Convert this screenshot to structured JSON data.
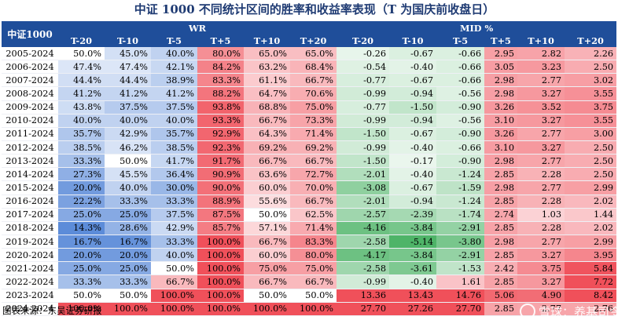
{
  "title": "中证 1000 不同统计区间的胜率和收益率表现（T 为国庆前收盘日）",
  "header": {
    "index_label": "中证1000",
    "groups": [
      "WR",
      "MID %"
    ],
    "sub_headers": [
      "T-20",
      "T-10",
      "T-5",
      "T+5",
      "T+10",
      "T+20",
      "T-20",
      "T-10",
      "T-5",
      "T+5",
      "T+10",
      "T+20"
    ]
  },
  "rows": [
    {
      "period": "2005-2024",
      "wr": [
        "50.0%",
        "45.0%",
        "40.0%",
        "80.0%",
        "65.0%",
        "65.0%"
      ],
      "mid": [
        "-0.26",
        "-0.67",
        "-0.66",
        "2.95",
        "2.82",
        "2.26"
      ]
    },
    {
      "period": "2006-2024",
      "wr": [
        "47.4%",
        "47.4%",
        "42.1%",
        "84.2%",
        "63.2%",
        "68.4%"
      ],
      "mid": [
        "-0.54",
        "-0.40",
        "-0.66",
        "3.05",
        "3.23",
        "2.50"
      ]
    },
    {
      "period": "2007-2024",
      "wr": [
        "44.4%",
        "44.4%",
        "38.9%",
        "83.3%",
        "61.1%",
        "66.7%"
      ],
      "mid": [
        "-0.77",
        "-0.67",
        "-0.66",
        "2.98",
        "2.77",
        "3.02"
      ]
    },
    {
      "period": "2008-2024",
      "wr": [
        "41.2%",
        "41.2%",
        "41.2%",
        "88.2%",
        "64.7%",
        "70.6%"
      ],
      "mid": [
        "-0.99",
        "-0.94",
        "-0.56",
        "2.98",
        "3.27",
        "3.55"
      ]
    },
    {
      "period": "2009-2024",
      "wr": [
        "43.8%",
        "37.5%",
        "37.5%",
        "93.8%",
        "68.8%",
        "75.0%"
      ],
      "mid": [
        "-0.77",
        "-1.50",
        "-0.90",
        "3.26",
        "3.52",
        "3.75"
      ]
    },
    {
      "period": "2010-2024",
      "wr": [
        "40.0%",
        "40.0%",
        "40.0%",
        "93.3%",
        "66.7%",
        "73.3%"
      ],
      "mid": [
        "-0.99",
        "-0.94",
        "-0.56",
        "3.10",
        "3.27",
        "3.55"
      ]
    },
    {
      "period": "2011-2024",
      "wr": [
        "35.7%",
        "42.9%",
        "35.7%",
        "92.9%",
        "64.3%",
        "71.4%"
      ],
      "mid": [
        "-1.50",
        "-0.67",
        "-0.90",
        "3.26",
        "2.77",
        "3.00"
      ]
    },
    {
      "period": "2012-2024",
      "wr": [
        "38.5%",
        "46.2%",
        "38.5%",
        "92.3%",
        "69.2%",
        "69.2%"
      ],
      "mid": [
        "-0.99",
        "-0.40",
        "-0.66",
        "3.10",
        "3.27",
        "2.50"
      ]
    },
    {
      "period": "2013-2024",
      "wr": [
        "33.3%",
        "50.0%",
        "41.7%",
        "91.7%",
        "66.7%",
        "66.7%"
      ],
      "mid": [
        "-1.50",
        "-0.17",
        "-0.90",
        "2.98",
        "2.77",
        "2.50"
      ]
    },
    {
      "period": "2014-2024",
      "wr": [
        "27.3%",
        "45.5%",
        "36.4%",
        "90.9%",
        "63.6%",
        "72.7%"
      ],
      "mid": [
        "-2.01",
        "-0.40",
        "-1.24",
        "2.85",
        "2.28",
        "2.50"
      ]
    },
    {
      "period": "2015-2024",
      "wr": [
        "20.0%",
        "40.0%",
        "30.0%",
        "90.0%",
        "60.0%",
        "70.0%"
      ],
      "mid": [
        "-3.08",
        "-0.67",
        "-1.59",
        "2.98",
        "2.77",
        "2.99"
      ]
    },
    {
      "period": "2016-2024",
      "wr": [
        "22.2%",
        "33.3%",
        "33.3%",
        "88.9%",
        "55.6%",
        "66.7%"
      ],
      "mid": [
        "-2.01",
        "-0.94",
        "-1.24",
        "2.85",
        "2.28",
        "2.02"
      ]
    },
    {
      "period": "2017-2024",
      "wr": [
        "25.0%",
        "25.0%",
        "37.5%",
        "87.5%",
        "50.0%",
        "62.5%"
      ],
      "mid": [
        "-2.57",
        "-2.39",
        "-1.74",
        "2.74",
        "1.03",
        "1.44"
      ]
    },
    {
      "period": "2018-2024",
      "wr": [
        "14.3%",
        "28.6%",
        "42.9%",
        "85.7%",
        "57.1%",
        "71.4%"
      ],
      "mid": [
        "-4.16",
        "-3.84",
        "-2.91",
        "2.85",
        "2.28",
        "2.02"
      ]
    },
    {
      "period": "2019-2024",
      "wr": [
        "16.7%",
        "16.7%",
        "33.3%",
        "100.0%",
        "66.7%",
        "83.3%"
      ],
      "mid": [
        "-2.58",
        "-5.14",
        "-3.80",
        "2.98",
        "2.77",
        "2.99"
      ]
    },
    {
      "period": "2020-2024",
      "wr": [
        "20.0%",
        "20.0%",
        "40.0%",
        "100.0%",
        "60.0%",
        "80.0%"
      ],
      "mid": [
        "-4.17",
        "-3.84",
        "-2.91",
        "2.85",
        "3.27",
        "3.95"
      ]
    },
    {
      "period": "2021-2024",
      "wr": [
        "25.0%",
        "25.0%",
        "50.0%",
        "100.0%",
        "75.0%",
        "75.0%"
      ],
      "mid": [
        "-2.58",
        "-3.61",
        "-1.53",
        "2.42",
        "3.75",
        "5.84"
      ]
    },
    {
      "period": "2022-2024",
      "wr": [
        "33.3%",
        "33.3%",
        "66.7%",
        "100.0%",
        "66.7%",
        "66.7%"
      ],
      "mid": [
        "-0.99",
        "-0.40",
        "1.61",
        "2.85",
        "3.27",
        "7.72"
      ]
    },
    {
      "period": "2023-2024",
      "wr": [
        "50.0%",
        "50.0%",
        "100.0%",
        "100.0%",
        "50.0%",
        "50.0%"
      ],
      "mid": [
        "13.36",
        "13.43",
        "14.76",
        "5.06",
        "4.90",
        "8.42"
      ]
    },
    {
      "period": "2024-2024",
      "wr": [
        "100.0%",
        "100.0%",
        "100.0%",
        "100.0%",
        "100.0%",
        "100.0%"
      ],
      "mid": [
        "27.70",
        "27.26",
        "27.70",
        "2.85",
        "2.77",
        "2.76"
      ]
    }
  ],
  "source": "图表来源：东吴证券研报",
  "watermark": "雪球：养基司令",
  "colors": {
    "header_bg": "#1f4e9a",
    "title": "#1f3b73",
    "low": "#5b8bd9",
    "high": "#f0505a",
    "mid_neg": "#3fae5b",
    "mid_pos": "#f0505a"
  }
}
